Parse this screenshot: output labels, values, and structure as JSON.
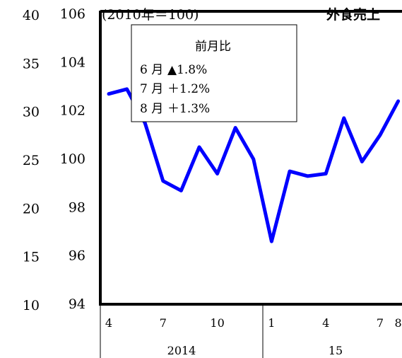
{
  "chart_data": {
    "type": "line",
    "title": "外食売上",
    "base_note": "(2010年＝100)",
    "y_left_outer": {
      "ticks": [
        "40",
        "35",
        "30",
        "25",
        "20",
        "15",
        "10"
      ],
      "range": [
        10,
        40
      ]
    },
    "y_inner": {
      "ticks": [
        "106",
        "104",
        "102",
        "100",
        "98",
        "96",
        "94"
      ],
      "range": [
        94,
        106
      ]
    },
    "x_month_ticks": [
      "4",
      "7",
      "10",
      "1",
      "4",
      "7",
      "8"
    ],
    "x_year_labels": [
      "2014",
      "15"
    ],
    "series": [
      {
        "color": "#0000ff",
        "months": [
          "2014-04",
          "2014-05",
          "2014-06",
          "2014-07",
          "2014-08",
          "2014-09",
          "2014-10",
          "2014-11",
          "2014-12",
          "2015-01",
          "2015-02",
          "2015-03",
          "2015-04",
          "2015-05",
          "2015-06",
          "2015-07",
          "2015-08"
        ],
        "values": [
          102.7,
          102.9,
          101.5,
          99.1,
          98.7,
          100.5,
          99.4,
          101.3,
          100.0,
          96.6,
          99.5,
          99.3,
          99.4,
          101.7,
          99.9,
          101.0,
          102.4
        ]
      }
    ],
    "legend": {
      "header": "前月比",
      "rows": [
        {
          "month": "6 月",
          "value": "▲1.8%"
        },
        {
          "month": "7 月",
          "value": "＋1.2%"
        },
        {
          "month": "8 月",
          "value": "＋1.3%"
        }
      ]
    }
  }
}
